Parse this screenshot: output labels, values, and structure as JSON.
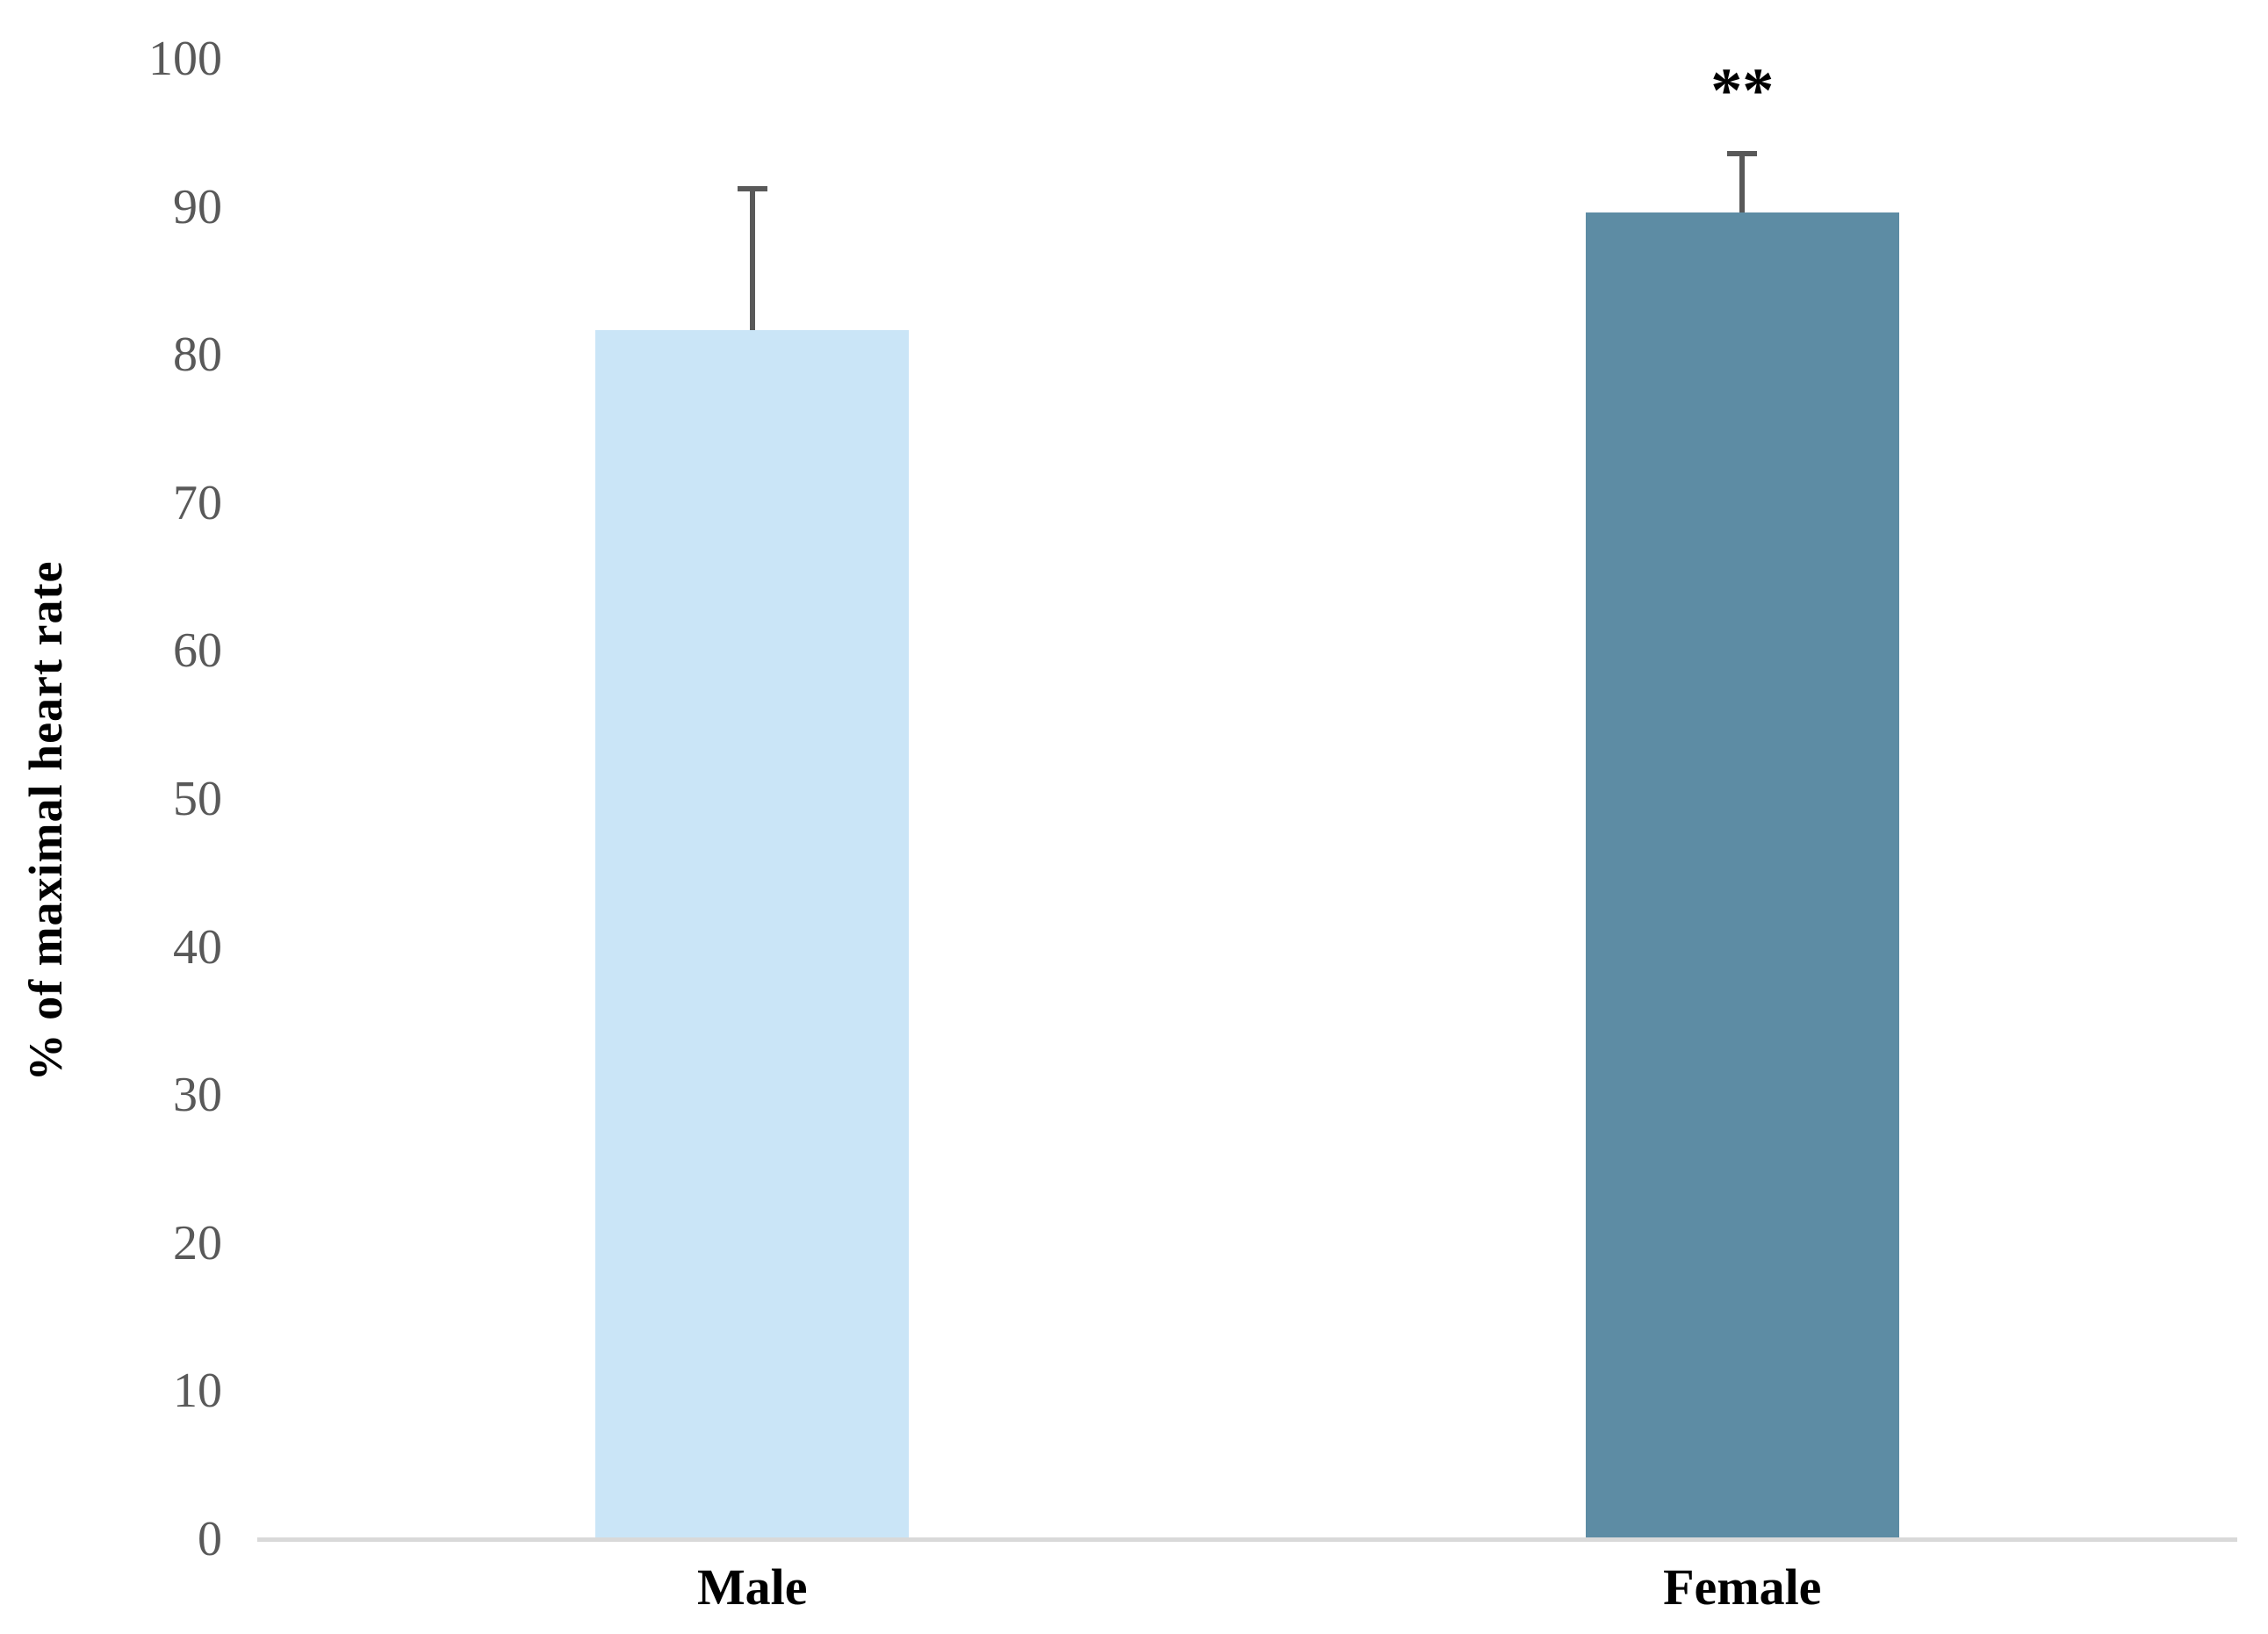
{
  "figure": {
    "background": "#ffffff"
  },
  "chart_data": {
    "type": "bar",
    "categories": [
      "Male",
      "Female"
    ],
    "values": [
      81.7,
      89.6
    ],
    "errors_up": [
      9.7,
      4.2
    ],
    "annotations": [
      "",
      "**"
    ],
    "title": "",
    "xlabel": "",
    "ylabel": "% of maximal heart rate",
    "ylim": [
      0,
      100
    ],
    "yticks": [
      0,
      10,
      20,
      30,
      40,
      50,
      60,
      70,
      80,
      90,
      100
    ],
    "grid": false,
    "legend": "none",
    "bar_colors": [
      "#cae5f7",
      "#5d8ca4"
    ],
    "error_bar_color": "#595959",
    "axis_line_color": "#d9d9d9",
    "tick_label_color": "#595959",
    "category_label_color": "#000000",
    "annotation_color": "#000000"
  }
}
